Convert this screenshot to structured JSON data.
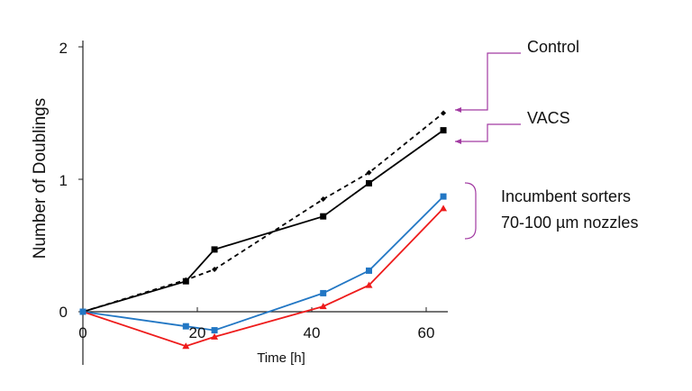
{
  "chart_data": {
    "type": "line",
    "title": "",
    "xlabel": "Time [h]",
    "ylabel": "Number of Doublings",
    "xlim": [
      0,
      63
    ],
    "ylim": [
      -0.4,
      2
    ],
    "x_ticks": [
      "0",
      "20",
      "40",
      "60"
    ],
    "y_ticks": [
      "0",
      "1",
      "2"
    ],
    "grid": false,
    "series": [
      {
        "name": "Control",
        "color": "#000000",
        "dash": "dashed",
        "marker": "diamond",
        "x": [
          0,
          18,
          23,
          42,
          50,
          63
        ],
        "y": [
          0,
          0.24,
          0.32,
          0.85,
          1.05,
          1.5
        ]
      },
      {
        "name": "VACS",
        "color": "#000000",
        "dash": "solid",
        "marker": "square",
        "x": [
          0,
          18,
          23,
          42,
          50,
          63
        ],
        "y": [
          0,
          0.23,
          0.47,
          0.72,
          0.97,
          1.37
        ]
      },
      {
        "name": "Incumbent sorter (blue)",
        "color": "#2277c4",
        "dash": "solid",
        "marker": "square",
        "x": [
          0,
          18,
          23,
          42,
          50,
          63
        ],
        "y": [
          0,
          -0.11,
          -0.14,
          0.14,
          0.31,
          0.87
        ]
      },
      {
        "name": "Incumbent sorter (red)",
        "color": "#ee1c1c",
        "dash": "solid",
        "marker": "triangle",
        "x": [
          0,
          18,
          23,
          42,
          50,
          63
        ],
        "y": [
          0,
          -0.26,
          -0.19,
          0.04,
          0.2,
          0.78
        ]
      }
    ],
    "annotations": {
      "control_label": "Control",
      "vacs_label": "VACS",
      "incumbent_line1": "Incumbent sorters",
      "incumbent_line2": "70-100 µm nozzles",
      "annotation_color": "#a23aa2"
    }
  }
}
